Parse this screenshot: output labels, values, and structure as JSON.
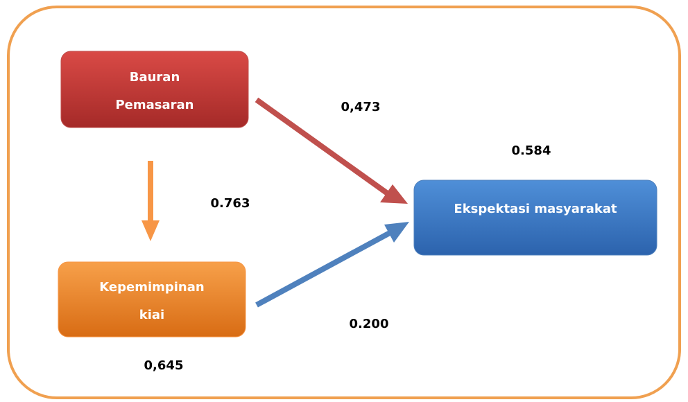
{
  "nodes": [
    {
      "label": [
        "Bauran",
        "Pemasaran"
      ]
    },
    {
      "label": [
        "Kepemimpinan",
        "kiai"
      ]
    },
    {
      "label": [
        "Ekspektasi masyarakat"
      ]
    }
  ],
  "edges": [
    {
      "label": "0,473"
    },
    {
      "label": "0.763"
    },
    {
      "label": "0.200"
    }
  ],
  "annotations": [
    "0.584",
    "0,645"
  ]
}
